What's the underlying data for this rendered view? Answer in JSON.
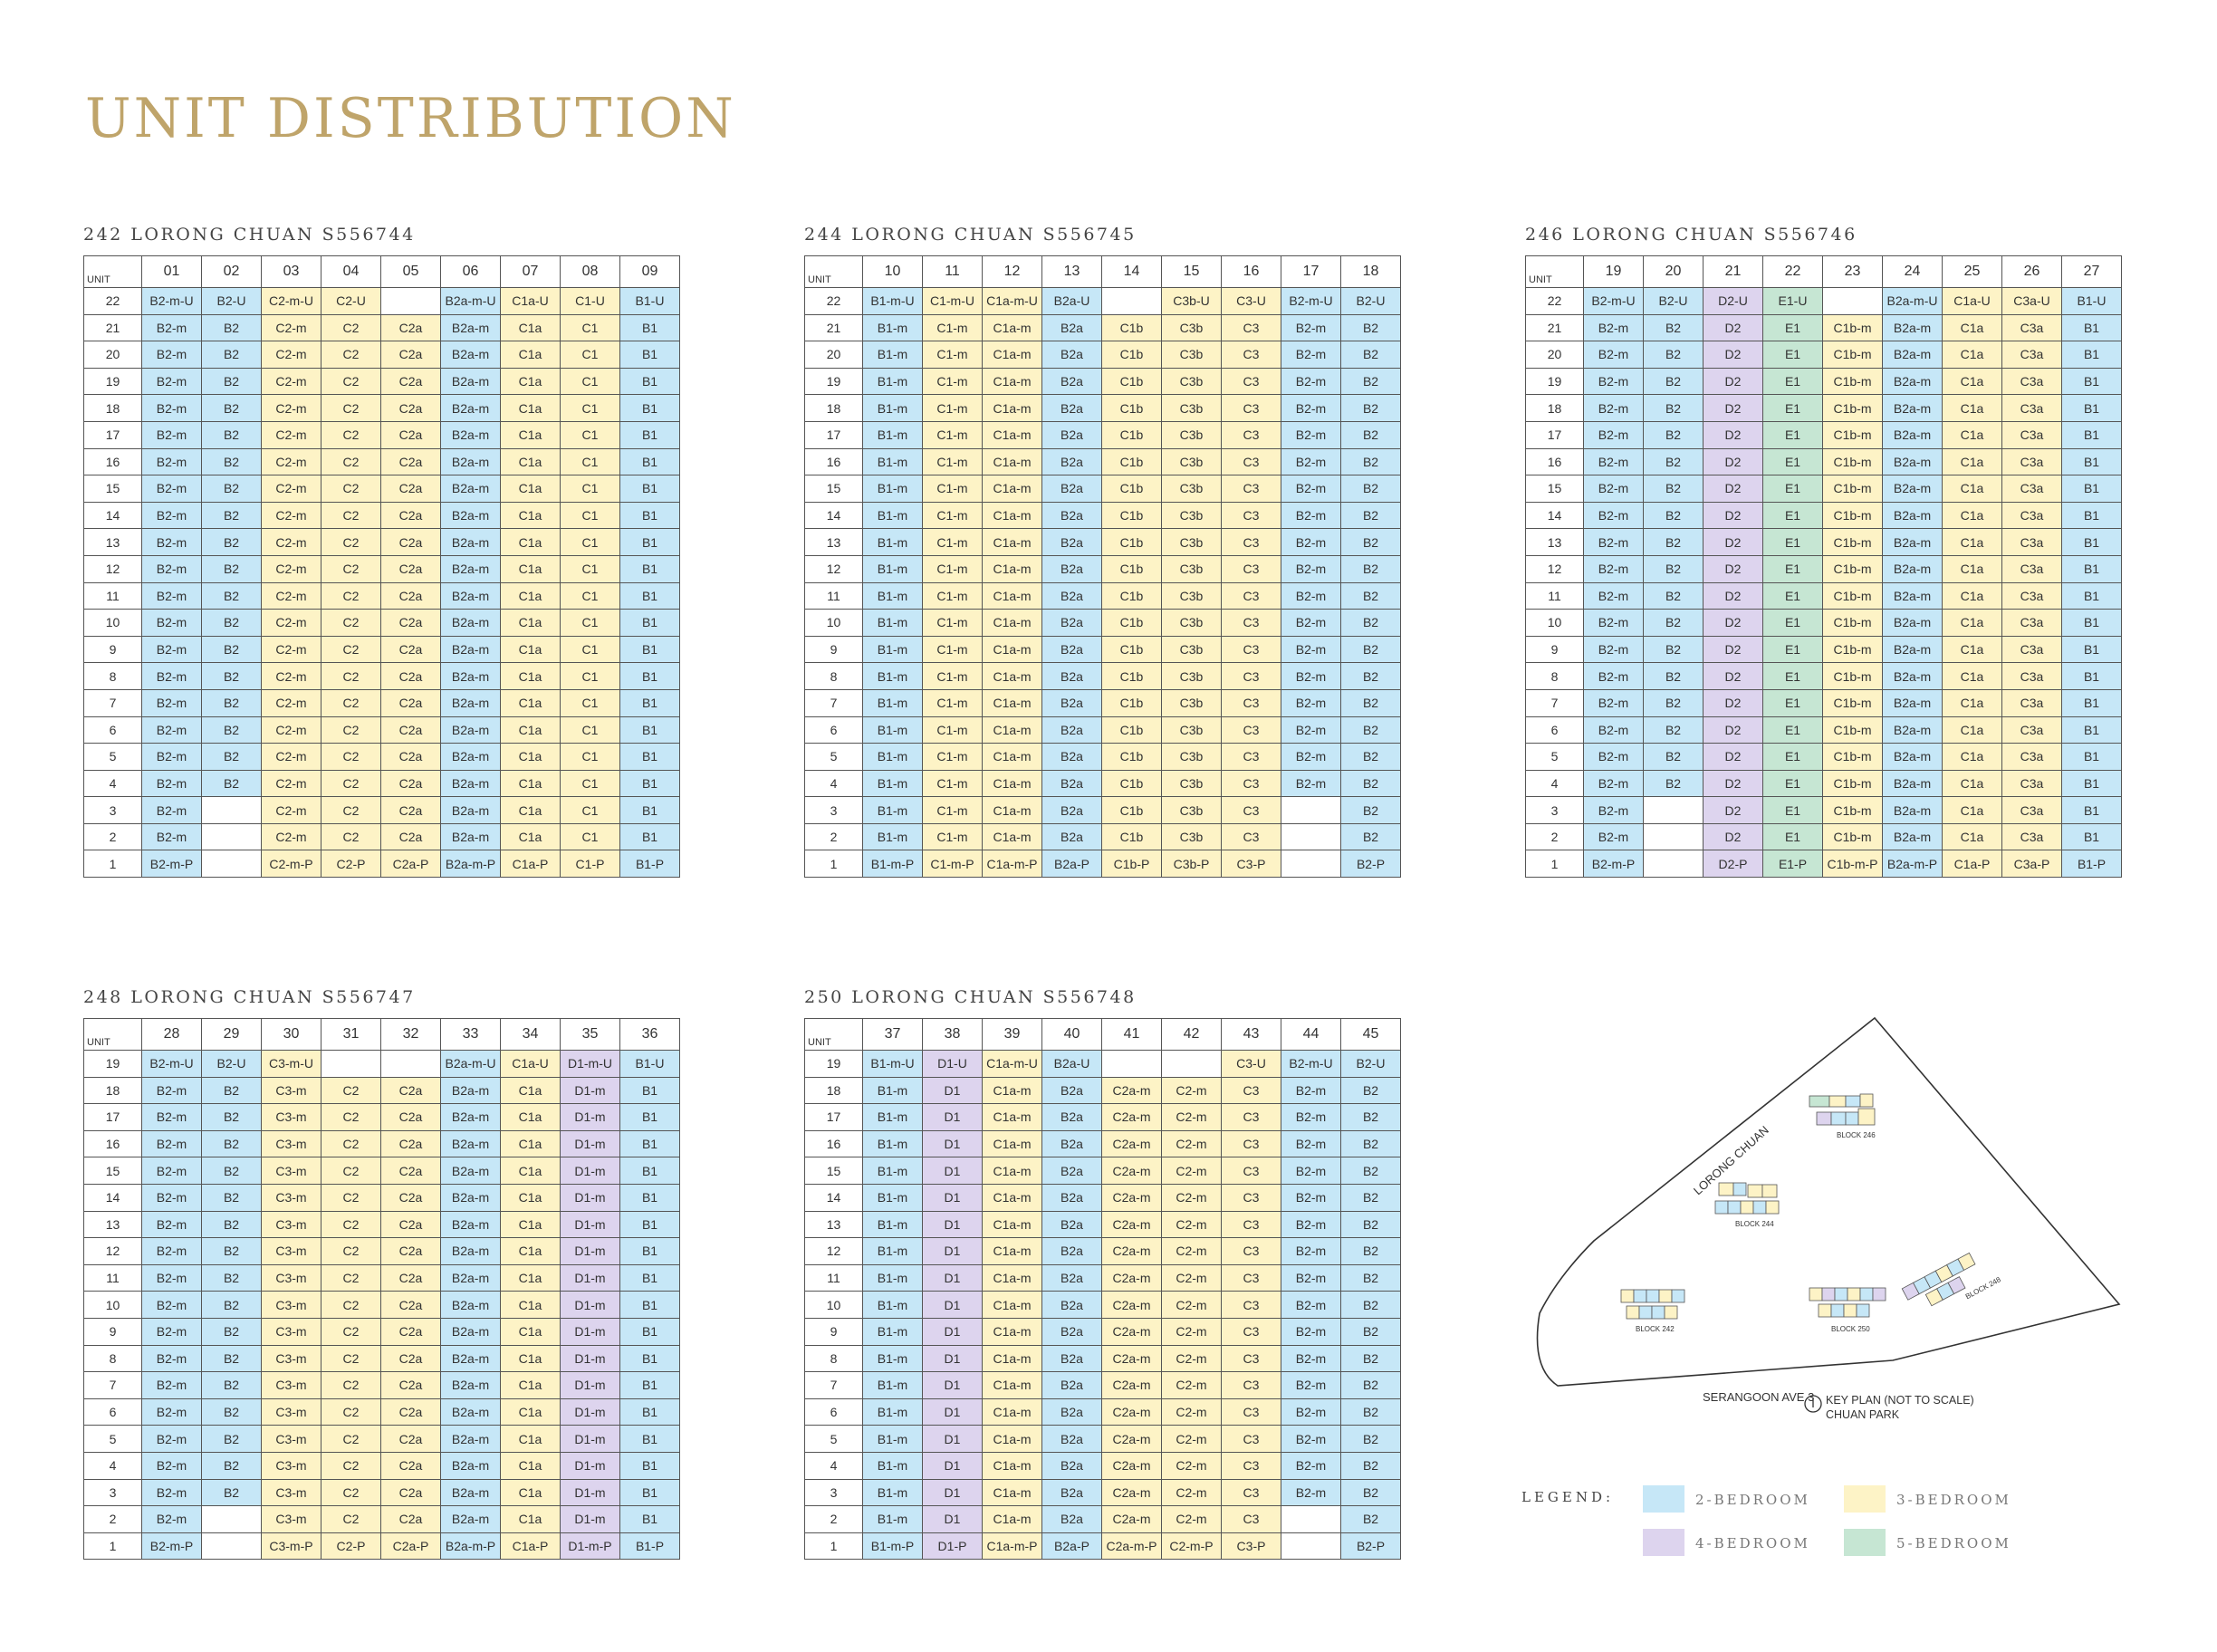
{
  "title": "UNIT DISTRIBUTION",
  "corner_label": "UNIT",
  "blocks": [
    {
      "title": "242 LORONG CHUAN S556744",
      "units": [
        "01",
        "02",
        "03",
        "04",
        "05",
        "06",
        "07",
        "08",
        "09"
      ],
      "cats": [
        2,
        2,
        3,
        3,
        3,
        2,
        3,
        3,
        2
      ],
      "top_floor": 22,
      "tops": [
        "B2-m-U",
        "B2-U",
        "C2-m-U",
        "C2-U",
        "",
        "B2a-m-U",
        "C1a-U",
        "C1-U",
        "B1-U"
      ],
      "typicals": [
        "B2-m",
        "B2",
        "C2-m",
        "C2",
        "C2a",
        "B2a-m",
        "C1a",
        "C1",
        "B1"
      ],
      "lows": {
        "3": [
          "B2-m",
          "",
          "C2-m",
          "C2",
          "C2a",
          "B2a-m",
          "C1a",
          "C1",
          "B1"
        ],
        "2": [
          "B2-m",
          "",
          "C2-m",
          "C2",
          "C2a",
          "B2a-m",
          "C1a",
          "C1",
          "B1"
        ],
        "1": [
          "B2-m-P",
          "",
          "C2-m-P",
          "C2-P",
          "C2a-P",
          "B2a-m-P",
          "C1a-P",
          "C1-P",
          "B1-P"
        ]
      }
    },
    {
      "title": "244 LORONG CHUAN S556745",
      "units": [
        "10",
        "11",
        "12",
        "13",
        "14",
        "15",
        "16",
        "17",
        "18"
      ],
      "cats": [
        2,
        3,
        3,
        2,
        3,
        3,
        3,
        2,
        2
      ],
      "top_floor": 22,
      "tops": [
        "B1-m-U",
        "C1-m-U",
        "C1a-m-U",
        "B2a-U",
        "",
        "C3b-U",
        "C3-U",
        "B2-m-U",
        "B2-U"
      ],
      "typicals": [
        "B1-m",
        "C1-m",
        "C1a-m",
        "B2a",
        "C1b",
        "C3b",
        "C3",
        "B2-m",
        "B2"
      ],
      "lows": {
        "3": [
          "B1-m",
          "C1-m",
          "C1a-m",
          "B2a",
          "C1b",
          "C3b",
          "C3",
          "",
          "B2"
        ],
        "2": [
          "B1-m",
          "C1-m",
          "C1a-m",
          "B2a",
          "C1b",
          "C3b",
          "C3",
          "",
          "B2"
        ],
        "1": [
          "B1-m-P",
          "C1-m-P",
          "C1a-m-P",
          "B2a-P",
          "C1b-P",
          "C3b-P",
          "C3-P",
          "",
          "B2-P"
        ]
      }
    },
    {
      "title": "246 LORONG CHUAN S556746",
      "units": [
        "19",
        "20",
        "21",
        "22",
        "23",
        "24",
        "25",
        "26",
        "27"
      ],
      "cats": [
        2,
        2,
        4,
        5,
        3,
        2,
        3,
        3,
        2
      ],
      "top_floor": 22,
      "tops": [
        "B2-m-U",
        "B2-U",
        "D2-U",
        "E1-U",
        "",
        "B2a-m-U",
        "C1a-U",
        "C3a-U",
        "B1-U"
      ],
      "typicals": [
        "B2-m",
        "B2",
        "D2",
        "E1",
        "C1b-m",
        "B2a-m",
        "C1a",
        "C3a",
        "B1"
      ],
      "lows": {
        "3": [
          "B2-m",
          "",
          "D2",
          "E1",
          "C1b-m",
          "B2a-m",
          "C1a",
          "C3a",
          "B1"
        ],
        "2": [
          "B2-m",
          "",
          "D2",
          "E1",
          "C1b-m",
          "B2a-m",
          "C1a",
          "C3a",
          "B1"
        ],
        "1": [
          "B2-m-P",
          "",
          "D2-P",
          "E1-P",
          "C1b-m-P",
          "B2a-m-P",
          "C1a-P",
          "C3a-P",
          "B1-P"
        ]
      }
    },
    {
      "title": "248 LORONG CHUAN S556747",
      "units": [
        "28",
        "29",
        "30",
        "31",
        "32",
        "33",
        "34",
        "35",
        "36"
      ],
      "cats": [
        2,
        2,
        3,
        3,
        3,
        2,
        3,
        4,
        2
      ],
      "top_floor": 19,
      "tops": [
        "B2-m-U",
        "B2-U",
        "C3-m-U",
        "",
        "",
        "B2a-m-U",
        "C1a-U",
        "D1-m-U",
        "B1-U"
      ],
      "typicals": [
        "B2-m",
        "B2",
        "C3-m",
        "C2",
        "C2a",
        "B2a-m",
        "C1a",
        "D1-m",
        "B1"
      ],
      "lows": {
        "3": [
          "B2-m",
          "B2",
          "C3-m",
          "C2",
          "C2a",
          "B2a-m",
          "C1a",
          "D1-m",
          "B1"
        ],
        "2": [
          "B2-m",
          "",
          "C3-m",
          "C2",
          "C2a",
          "B2a-m",
          "C1a",
          "D1-m",
          "B1"
        ],
        "1": [
          "B2-m-P",
          "",
          "C3-m-P",
          "C2-P",
          "C2a-P",
          "B2a-m-P",
          "C1a-P",
          "D1-m-P",
          "B1-P"
        ]
      }
    },
    {
      "title": "250 LORONG CHUAN S556748",
      "units": [
        "37",
        "38",
        "39",
        "40",
        "41",
        "42",
        "43",
        "44",
        "45"
      ],
      "cats": [
        2,
        4,
        3,
        2,
        3,
        3,
        3,
        2,
        2
      ],
      "top_floor": 19,
      "tops": [
        "B1-m-U",
        "D1-U",
        "C1a-m-U",
        "B2a-U",
        "",
        "",
        "C3-U",
        "B2-m-U",
        "B2-U"
      ],
      "typicals": [
        "B1-m",
        "D1",
        "C1a-m",
        "B2a",
        "C2a-m",
        "C2-m",
        "C3",
        "B2-m",
        "B2"
      ],
      "lows": {
        "3": [
          "B1-m",
          "D1",
          "C1a-m",
          "B2a",
          "C2a-m",
          "C2-m",
          "C3",
          "B2-m",
          "B2"
        ],
        "2": [
          "B1-m",
          "D1",
          "C1a-m",
          "B2a",
          "C2a-m",
          "C2-m",
          "C3",
          "",
          "B2"
        ],
        "1": [
          "B1-m-P",
          "D1-P",
          "C1a-m-P",
          "B2a-P",
          "C2a-m-P",
          "C2-m-P",
          "C3-P",
          "",
          "B2-P"
        ]
      }
    }
  ],
  "keyplan": {
    "road_north": "LORONG CHUAN",
    "road_south": "SERANGOON AVE 3",
    "caption": "KEY PLAN (NOT TO SCALE)",
    "caption2": "CHUAN PARK",
    "block_labels": [
      "BLOCK 246",
      "BLOCK 244",
      "BLOCK 242",
      "BLOCK 250",
      "BLOCK 248"
    ]
  },
  "legend": {
    "title": "LEGEND:",
    "items": [
      {
        "label": "2-BEDROOM",
        "color": "#c6e7f7"
      },
      {
        "label": "3-BEDROOM",
        "color": "#fdf3c6"
      },
      {
        "label": "4-BEDROOM",
        "color": "#ddd4ee"
      },
      {
        "label": "5-BEDROOM",
        "color": "#c6e6d3"
      }
    ]
  }
}
